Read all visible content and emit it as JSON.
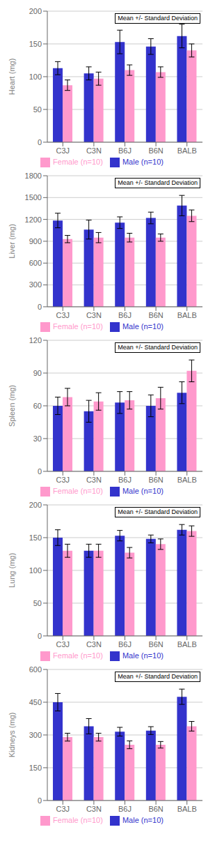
{
  "chart_data": [
    {
      "type": "bar",
      "ylabel": "Heart (mg)",
      "annotation": "Mean +/- Standard Deviation",
      "categories": [
        "C3J",
        "C3N",
        "B6J",
        "B6N",
        "BALB"
      ],
      "series": [
        {
          "name": "Male (n=10)",
          "color": "#3333CC",
          "values": [
            113,
            105,
            153,
            146,
            162
          ],
          "errors": [
            10,
            10,
            18,
            12,
            18
          ]
        },
        {
          "name": "Female (n=10)",
          "color": "#FF99CC",
          "values": [
            87,
            97,
            110,
            107,
            140
          ],
          "errors": [
            8,
            10,
            8,
            8,
            10
          ]
        }
      ],
      "ylim": [
        0,
        200
      ],
      "yticks": [
        0,
        50,
        100,
        150,
        200
      ],
      "grid": true,
      "legend": "bottom"
    },
    {
      "type": "bar",
      "ylabel": "Liver (mg)",
      "annotation": "Mean +/- Standard Deviation",
      "categories": [
        "C3J",
        "C3N",
        "B6J",
        "B6N",
        "BALB"
      ],
      "series": [
        {
          "name": "Male (n=10)",
          "color": "#3333CC",
          "values": [
            1185,
            1060,
            1155,
            1220,
            1390
          ],
          "errors": [
            100,
            130,
            80,
            80,
            140
          ]
        },
        {
          "name": "Female (n=10)",
          "color": "#FF99CC",
          "values": [
            930,
            950,
            950,
            950,
            1250
          ],
          "errors": [
            50,
            70,
            60,
            50,
            80
          ]
        }
      ],
      "ylim": [
        0,
        1800
      ],
      "yticks": [
        0,
        300,
        600,
        900,
        1200,
        1500,
        1800
      ],
      "grid": true,
      "legend": "bottom"
    },
    {
      "type": "bar",
      "ylabel": "Spleen (mg)",
      "annotation": "Mean +/- Standard Deviation",
      "categories": [
        "C3J",
        "C3N",
        "B6J",
        "B6N",
        "BALB"
      ],
      "series": [
        {
          "name": "Male (n=10)",
          "color": "#3333CC",
          "values": [
            60,
            55,
            63,
            60,
            72
          ],
          "errors": [
            8,
            10,
            10,
            10,
            10
          ]
        },
        {
          "name": "Female (n=10)",
          "color": "#FF99CC",
          "values": [
            68,
            64,
            65,
            67,
            92
          ],
          "errors": [
            8,
            8,
            8,
            10,
            10
          ]
        }
      ],
      "ylim": [
        0,
        120
      ],
      "yticks": [
        0,
        30,
        60,
        90,
        120
      ],
      "grid": true,
      "legend": "bottom"
    },
    {
      "type": "bar",
      "ylabel": "Lung (mg)",
      "annotation": "Mean +/- Standard Deviation",
      "categories": [
        "C3J",
        "C3N",
        "B6J",
        "B6N",
        "BALB"
      ],
      "series": [
        {
          "name": "Male (n=10)",
          "color": "#3333CC",
          "values": [
            150,
            130,
            153,
            148,
            162
          ],
          "errors": [
            12,
            10,
            8,
            6,
            8
          ]
        },
        {
          "name": "Female (n=10)",
          "color": "#FF99CC",
          "values": [
            130,
            130,
            127,
            140,
            160
          ],
          "errors": [
            10,
            10,
            8,
            8,
            8
          ]
        }
      ],
      "ylim": [
        0,
        200
      ],
      "yticks": [
        0,
        50,
        100,
        150,
        200
      ],
      "grid": true,
      "legend": "bottom"
    },
    {
      "type": "bar",
      "ylabel": "Kidneys (mg)",
      "annotation": "Mean +/- Standard Deviation",
      "categories": [
        "C3J",
        "C3N",
        "B6J",
        "B6N",
        "BALB"
      ],
      "series": [
        {
          "name": "Male (n=10)",
          "color": "#3333CC",
          "values": [
            450,
            340,
            315,
            320,
            475
          ],
          "errors": [
            40,
            35,
            20,
            18,
            35
          ]
        },
        {
          "name": "Female (n=10)",
          "color": "#FF99CC",
          "values": [
            290,
            290,
            255,
            255,
            340
          ],
          "errors": [
            18,
            18,
            18,
            15,
            22
          ]
        }
      ],
      "ylim": [
        0,
        600
      ],
      "yticks": [
        0,
        150,
        300,
        450,
        600
      ],
      "grid": true,
      "legend": "bottom"
    }
  ]
}
